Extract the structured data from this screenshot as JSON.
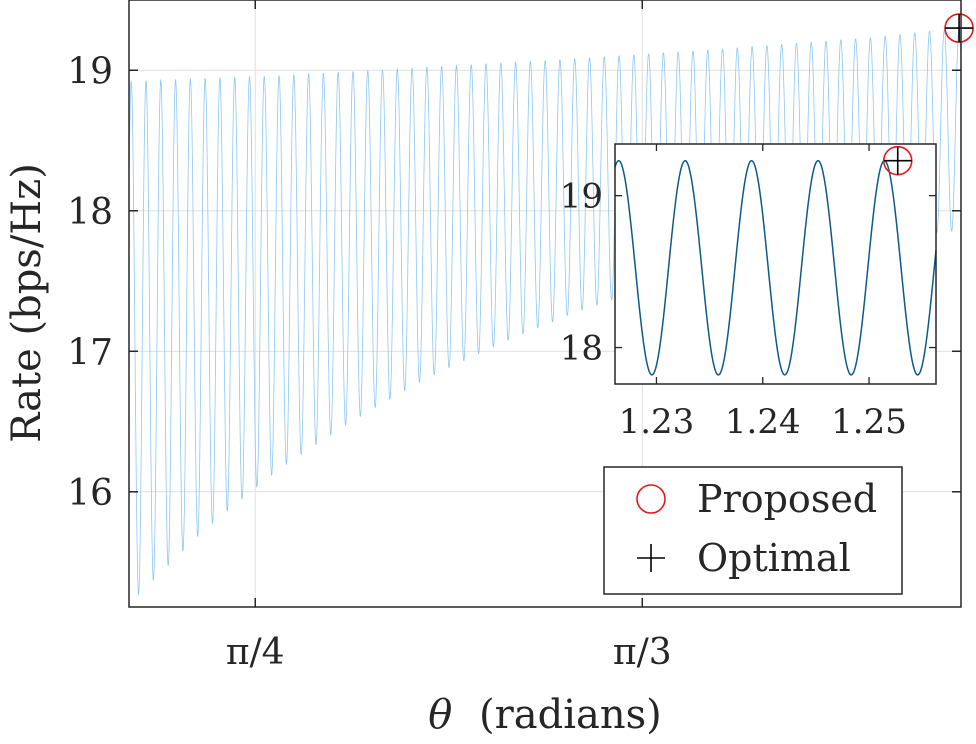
{
  "chart_data": [
    {
      "type": "line",
      "panel": "main",
      "xlabel_symbol": "θ",
      "xlabel_unit": "(radians)",
      "ylabel": "Rate (bps/Hz)",
      "xlim": [
        0.7,
        1.2628
      ],
      "ylim": [
        15.18,
        19.5
      ],
      "xticks": [
        {
          "value": 0.785398,
          "label": "π/4"
        },
        {
          "value": 1.047198,
          "label": "π/3"
        }
      ],
      "yticks": [
        {
          "value": 16,
          "label": "16"
        },
        {
          "value": 17,
          "label": "17"
        },
        {
          "value": 18,
          "label": "18"
        },
        {
          "value": 19,
          "label": "19"
        }
      ],
      "grid": true,
      "series": [
        {
          "color": "#8fc8f0",
          "oscillation_period": 0.01,
          "upper_envelope": {
            "x": [
              0.7,
              0.8,
              0.9,
              1.0,
              1.1,
              1.2,
              1.2628
            ],
            "y": [
              18.92,
              18.96,
              19.02,
              19.08,
              19.15,
              19.23,
              19.3
            ]
          },
          "lower_envelope": {
            "x": [
              0.7,
              0.75,
              0.8,
              0.85,
              0.9,
              0.95,
              1.0,
              1.05,
              1.1,
              1.15,
              1.2,
              1.25,
              1.2628
            ],
            "y": [
              15.2,
              15.72,
              16.15,
              16.5,
              16.8,
              17.05,
              17.27,
              17.45,
              17.6,
              17.72,
              17.8,
              17.85,
              17.86
            ]
          }
        }
      ],
      "markers": [
        {
          "name": "Proposed",
          "shape": "circle",
          "color": "#e41a1c",
          "x": 1.2615,
          "y": 19.3
        },
        {
          "name": "Optimal",
          "shape": "plus",
          "color": "#000000",
          "x": 1.2615,
          "y": 19.3
        }
      ]
    },
    {
      "type": "line",
      "panel": "inset",
      "xlim": [
        1.2261,
        1.2563
      ],
      "ylim": [
        17.76,
        19.34
      ],
      "xticks": [
        {
          "value": 1.23,
          "label": "1.23"
        },
        {
          "value": 1.24,
          "label": "1.24"
        },
        {
          "value": 1.25,
          "label": "1.25"
        }
      ],
      "yticks": [
        {
          "value": 18,
          "label": "18"
        },
        {
          "value": 19,
          "label": "19"
        }
      ],
      "grid": false,
      "series": [
        {
          "color": "#0c5a8c",
          "oscillation_period": 0.00625,
          "max": 19.23,
          "min": 17.82,
          "first_peak_x": 1.2327
        }
      ],
      "markers": [
        {
          "name": "Proposed",
          "shape": "circle",
          "color": "#e41a1c",
          "x": 1.2527,
          "y": 19.23
        },
        {
          "name": "Optimal",
          "shape": "plus",
          "color": "#000000",
          "x": 1.2527,
          "y": 19.23
        }
      ]
    }
  ],
  "legend": {
    "placement": "bottom-right",
    "items": [
      {
        "label": "Proposed",
        "marker": "circle",
        "color": "#e41a1c"
      },
      {
        "label": "Optimal",
        "marker": "plus",
        "color": "#000000"
      }
    ]
  }
}
